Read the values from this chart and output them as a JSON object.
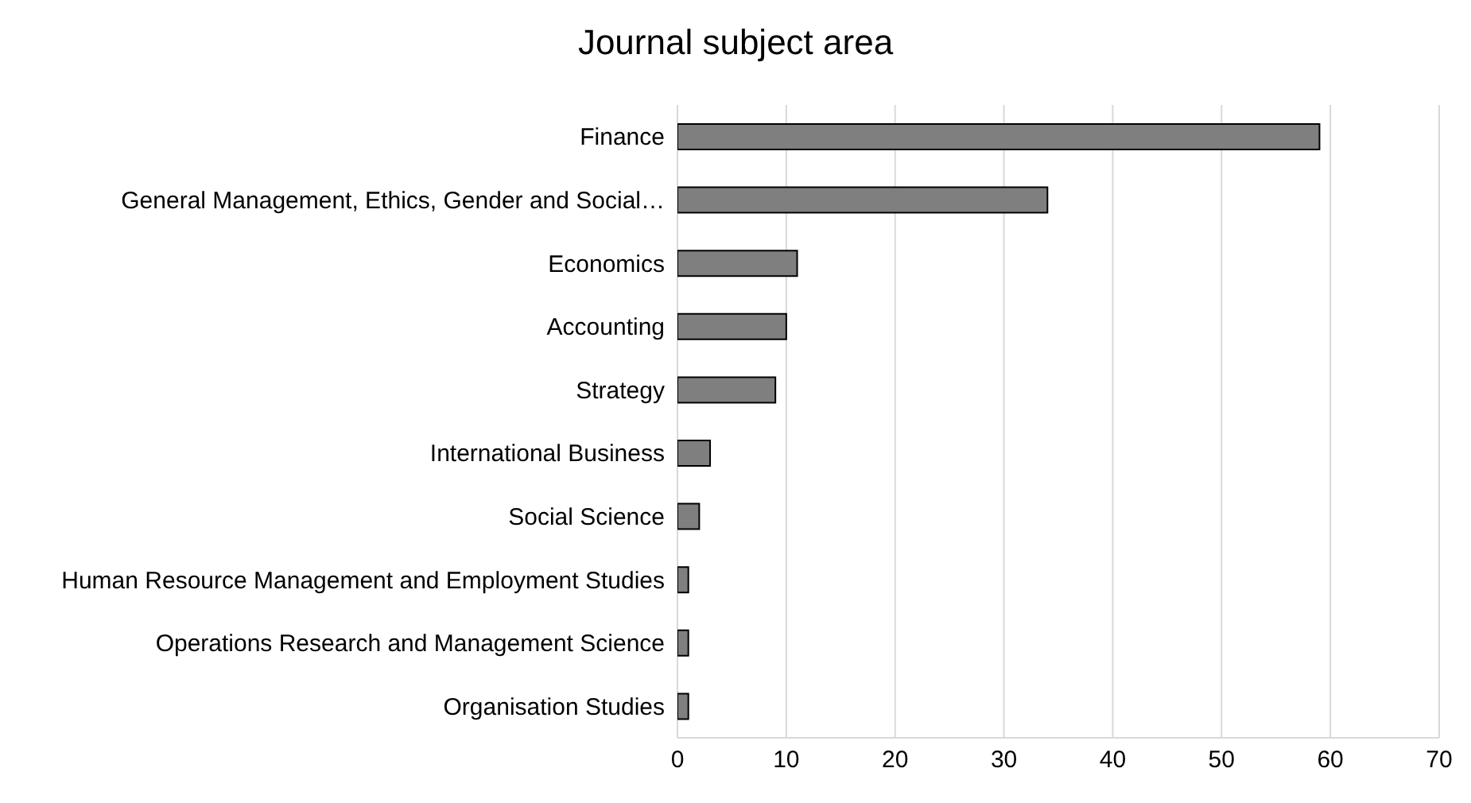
{
  "chart_data": {
    "type": "bar",
    "orientation": "horizontal",
    "title": "Journal subject area",
    "categories": [
      "Finance",
      "General Management, Ethics, Gender and Social…",
      "Economics",
      "Accounting ",
      "Strategy",
      "International Business",
      "Social Science",
      "Human Resource Management and Employment Studies",
      "Operations Research and Management Science",
      "Organisation Studies"
    ],
    "values": [
      59,
      34,
      11,
      10,
      9,
      3,
      2,
      1,
      1,
      1
    ],
    "color": "#7f7f7f",
    "xlim": [
      0,
      70
    ],
    "xticks": [
      0,
      10,
      20,
      30,
      40,
      50,
      60,
      70
    ],
    "grid": "x"
  }
}
